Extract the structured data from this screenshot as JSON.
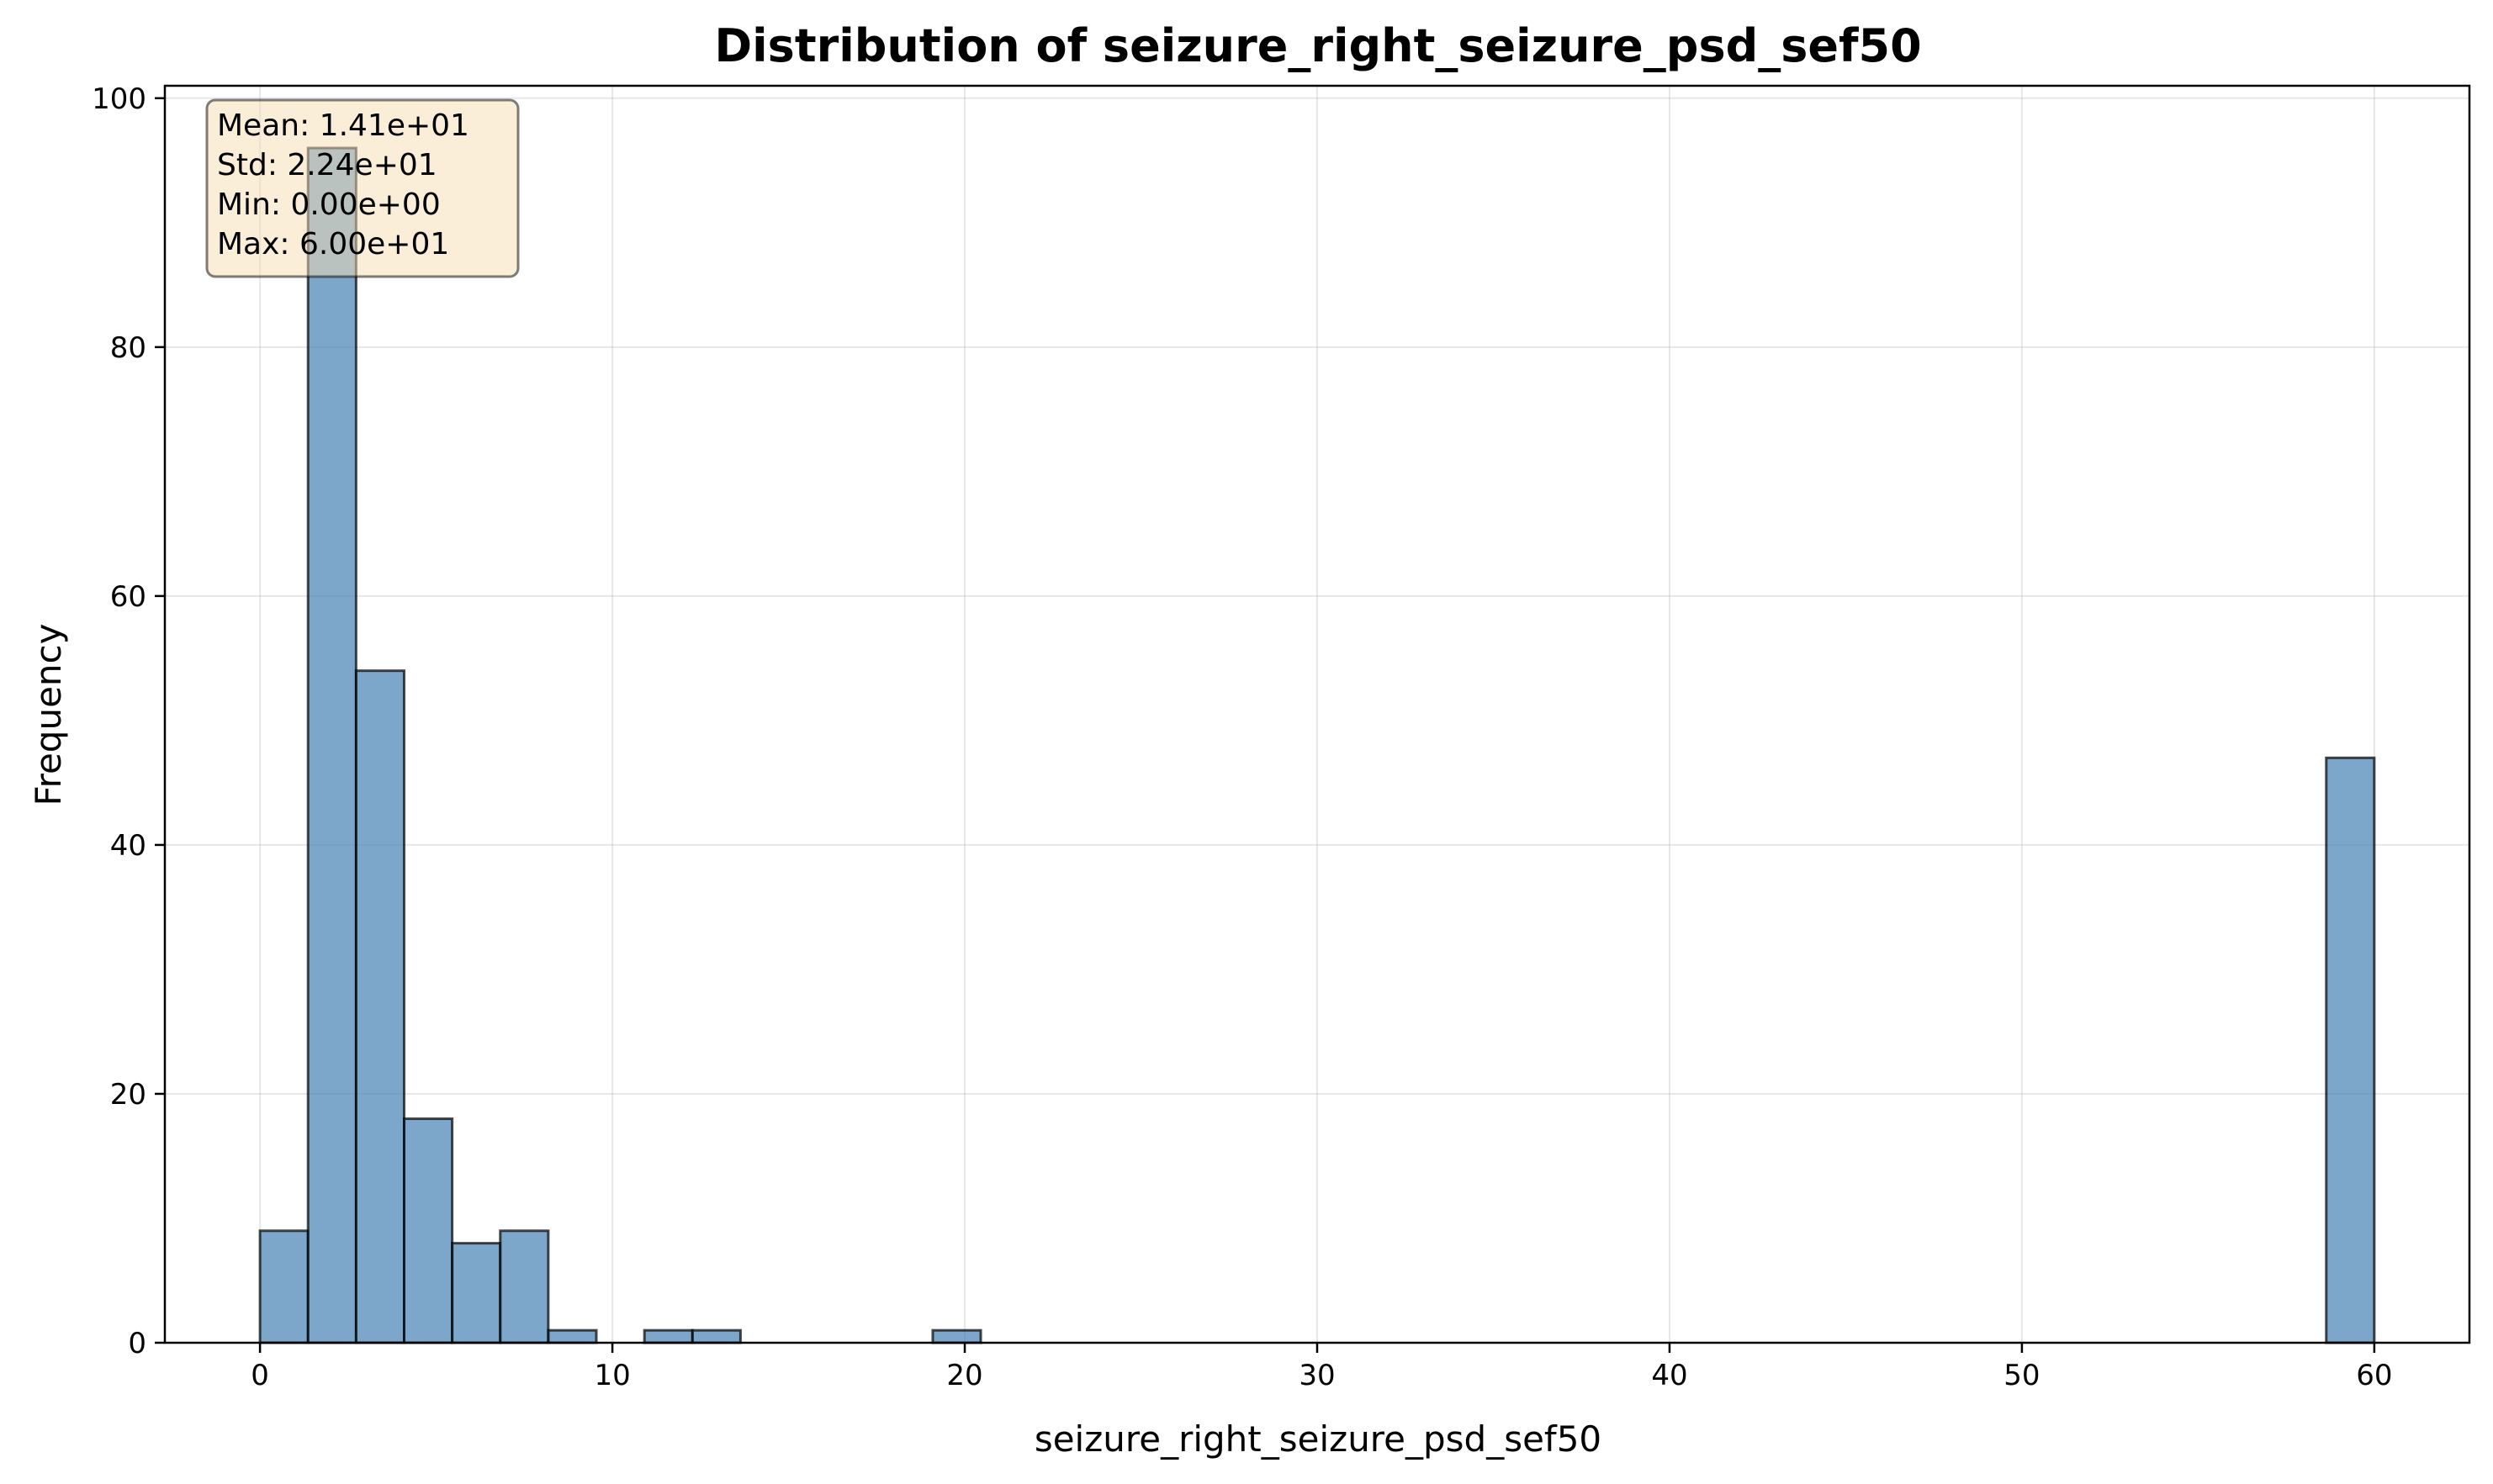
{
  "chart_data": {
    "type": "bar",
    "title": "Distribution of seizure_right_seizure_psd_sef50",
    "xlabel": "seizure_right_seizure_psd_sef50",
    "ylabel": "Frequency",
    "xlim": [
      -2.7,
      62.7
    ],
    "ylim": [
      0,
      101
    ],
    "xticks": [
      0,
      10,
      20,
      30,
      40,
      50,
      60
    ],
    "yticks": [
      0,
      20,
      40,
      60,
      80,
      100
    ],
    "grid": true,
    "bin_edges": [
      0,
      1.3636,
      2.7273,
      4.0909,
      5.4545,
      6.8182,
      8.1818,
      9.5455,
      10.9091,
      12.2727,
      13.6364,
      15.0,
      16.3636,
      17.7273,
      19.0909,
      20.4545,
      21.8182,
      23.1818,
      24.5455,
      25.9091,
      27.2727,
      28.6364,
      30.0,
      31.3636,
      32.7273,
      34.0909,
      35.4545,
      36.8182,
      38.1818,
      39.5455,
      40.9091,
      42.2727,
      43.6364,
      45.0,
      46.3636,
      47.7273,
      49.0909,
      50.4545,
      51.8182,
      53.1818,
      54.5455,
      55.9091,
      57.2727,
      58.6364,
      60.0
    ],
    "counts": [
      9,
      96,
      54,
      18,
      8,
      9,
      1,
      0,
      1,
      1,
      0,
      0,
      0,
      0,
      1,
      0,
      0,
      0,
      0,
      0,
      0,
      0,
      0,
      0,
      0,
      0,
      0,
      0,
      0,
      0,
      0,
      0,
      0,
      0,
      0,
      0,
      0,
      0,
      0,
      0,
      0,
      0,
      0,
      47
    ],
    "bar_color": "#4682b4",
    "stats_box": {
      "lines": [
        "Mean: 1.41e+01",
        "Std: 2.24e+01",
        "Min: 0.00e+00",
        "Max: 6.00e+01"
      ],
      "placement": "top-left",
      "fill_color": "#f5deb3"
    }
  }
}
